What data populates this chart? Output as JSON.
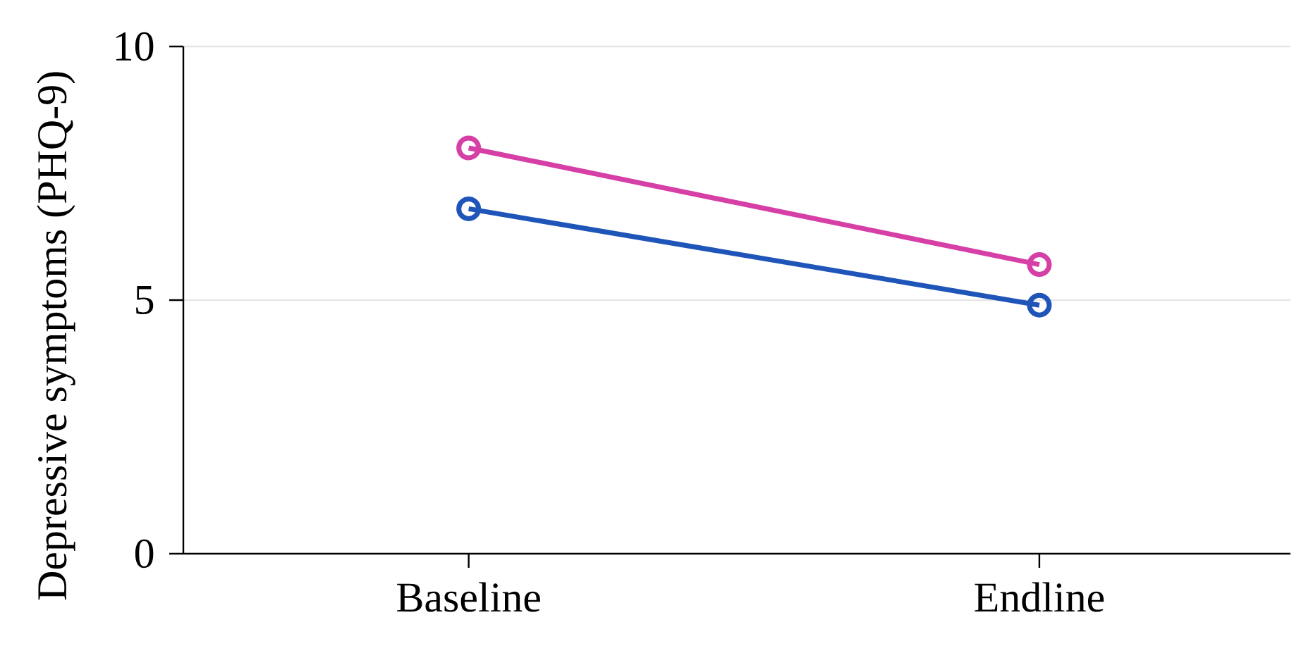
{
  "chart_data": {
    "type": "line",
    "ylabel": "Depressive symptoms (PHQ-9)",
    "categories": [
      "Baseline",
      "Endline"
    ],
    "series": [
      {
        "color": "#d63fa6",
        "values": [
          8.0,
          5.7
        ]
      },
      {
        "color": "#1f55b9",
        "values": [
          6.8,
          4.9
        ]
      }
    ],
    "ylim": [
      0,
      10
    ],
    "yticks": [
      0,
      5,
      10
    ],
    "grid": "y",
    "marker": "circle",
    "line_style": "solid"
  }
}
